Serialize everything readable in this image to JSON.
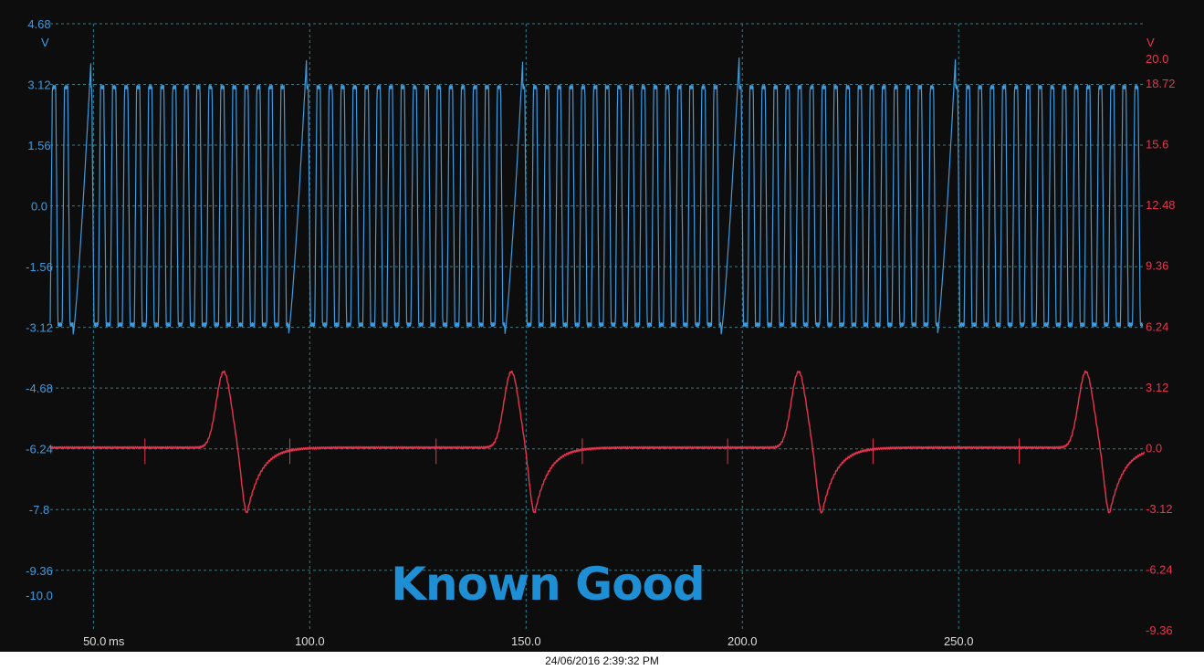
{
  "colors": {
    "background": "#0d0d0d",
    "grid": "#2e7f8a",
    "channel_a": "#3d9be0",
    "channel_b": "#e8344f",
    "watermark": "#1e8fd4"
  },
  "timestamp": "24/06/2016 2:39:32 PM",
  "watermark": "Known Good",
  "chart_data": {
    "type": "line",
    "title": "",
    "grid": true,
    "x_axis": {
      "range": [
        40,
        293
      ],
      "ticks": [
        50,
        100,
        150,
        200,
        250
      ],
      "tick_labels": [
        "50.0",
        "100.0",
        "150.0",
        "200.0",
        "250.0"
      ],
      "unit": "ms"
    },
    "left_axis": {
      "unit": "V",
      "range": [
        -10.89,
        4.68
      ],
      "ticks": [
        4.68,
        3.12,
        1.56,
        0.0,
        -1.56,
        -3.12,
        -4.68,
        -6.24,
        -7.8,
        -9.36,
        -10.0
      ],
      "tick_labels": [
        "4.68",
        "3.12",
        "1.56",
        "0.0",
        "-1.56",
        "-3.12",
        "-4.68",
        "-6.24",
        "-7.8",
        "-9.36",
        "-10.0"
      ]
    },
    "right_axis": {
      "unit": "V",
      "range": [
        -9.36,
        21.77
      ],
      "ticks": [
        20.0,
        18.72,
        15.6,
        12.48,
        9.36,
        6.24,
        3.12,
        0.0,
        -3.12,
        -6.24,
        -9.36
      ],
      "tick_labels": [
        "20.0",
        "18.72",
        "15.6",
        "12.48",
        "9.36",
        "6.24",
        "3.12",
        "0.0",
        "-3.12",
        "-6.24",
        "-9.36"
      ]
    },
    "series": [
      {
        "channel": "A",
        "axis": "left",
        "waveform": "crankshaft sensor square wave with missing-tooth gap",
        "high_v": 3.05,
        "low_v": -3.05,
        "tooth_period_ms": 2.78,
        "gap_peak_v": 3.8,
        "gap_trough_v": -3.3,
        "gap_starts_ms": [
          45.3,
          95.1,
          145.1
        ],
        "gap_length_ms": 4.15,
        "gap_repeat_ms": 50,
        "x_start_ms": 40,
        "x_end_ms": 292.5
      },
      {
        "channel": "B",
        "axis": "right",
        "waveform": "camshaft sensor pulse",
        "baseline_v": 0.0,
        "pulse_peaks": [
          {
            "x_ms": 80.1,
            "y_v": 3.9
          },
          {
            "x_ms": 146.6,
            "y_v": 3.9
          },
          {
            "x_ms": 213.0,
            "y_v": 3.9
          },
          {
            "x_ms": 279.4,
            "y_v": 3.9
          }
        ],
        "pulse_troughs": [
          {
            "x_ms": 85.5,
            "y_v": -3.4
          },
          {
            "x_ms": 152.0,
            "y_v": -3.4
          },
          {
            "x_ms": 218.4,
            "y_v": -3.4
          },
          {
            "x_ms": 284.9,
            "y_v": -3.4
          }
        ],
        "marker_ticks_ms": [
          61.9,
          95.4,
          129.2,
          163.0,
          196.6,
          230.2,
          264.0
        ],
        "x_start_ms": 40,
        "x_end_ms": 293
      }
    ]
  }
}
